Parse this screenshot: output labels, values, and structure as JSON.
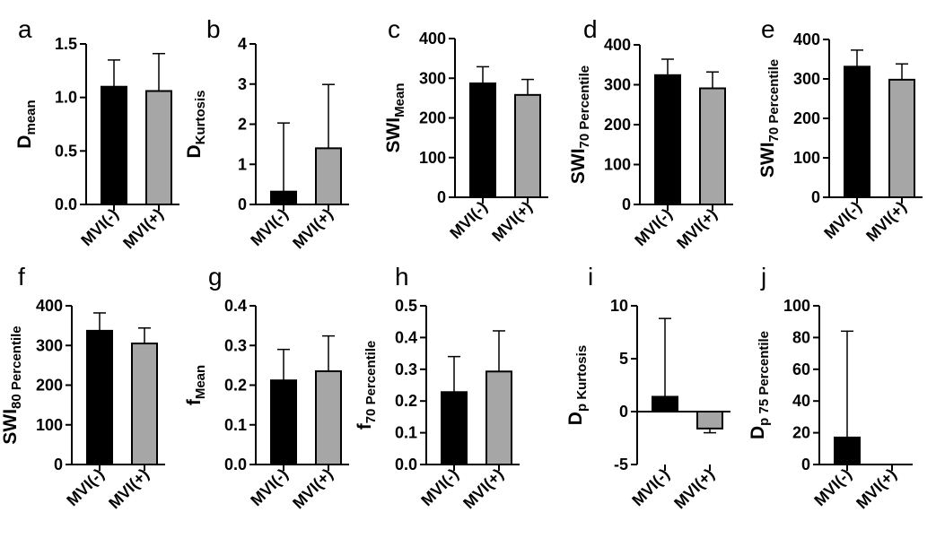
{
  "colors": {
    "mvi_neg": "#000000",
    "mvi_pos": "#a6a6a6",
    "axis": "#000000"
  },
  "chart_data": [
    {
      "panel": "a",
      "type": "bar",
      "ylabel": {
        "main": "D",
        "sub": "mean"
      },
      "ylim": [
        0,
        1.5
      ],
      "yticks": [
        "0.0",
        "0.5",
        "1.0",
        "1.5"
      ],
      "ytick_values": [
        0,
        0.5,
        1.0,
        1.5
      ],
      "categories": [
        "MVI(-)",
        "MVI(+)"
      ],
      "values": [
        1.1,
        1.06
      ],
      "error_upper": [
        1.35,
        1.41
      ]
    },
    {
      "panel": "b",
      "type": "bar",
      "ylabel": {
        "main": "D",
        "sub": "Kurtosis"
      },
      "ylim": [
        0,
        4
      ],
      "yticks": [
        "0",
        "1",
        "2",
        "3",
        "4"
      ],
      "ytick_values": [
        0,
        1,
        2,
        3,
        4
      ],
      "categories": [
        "MVI(-)",
        "MVI(+)"
      ],
      "values": [
        0.32,
        1.4
      ],
      "error_upper": [
        2.03,
        2.99
      ]
    },
    {
      "panel": "c",
      "type": "bar",
      "ylabel": {
        "main": "SWI",
        "sub": "Mean"
      },
      "ylim": [
        0,
        400
      ],
      "yticks": [
        "0",
        "100",
        "200",
        "300",
        "400"
      ],
      "ytick_values": [
        0,
        100,
        200,
        300,
        400
      ],
      "categories": [
        "MVI(-)",
        "MVI(+)"
      ],
      "values": [
        287,
        258
      ],
      "error_upper": [
        329,
        297
      ]
    },
    {
      "panel": "d",
      "type": "bar",
      "ylabel": {
        "main": "SWI",
        "sub": "70 Percentile"
      },
      "ylim": [
        0,
        400
      ],
      "yticks": [
        "0",
        "100",
        "200",
        "300",
        "400"
      ],
      "ytick_values": [
        0,
        100,
        200,
        300,
        400
      ],
      "categories": [
        "MVI(-)",
        "MVI(+)"
      ],
      "values": [
        324,
        291
      ],
      "error_upper": [
        364,
        332
      ]
    },
    {
      "panel": "e",
      "type": "bar",
      "ylabel": {
        "main": "SWI",
        "sub": "70 Percentile"
      },
      "ylim": [
        0,
        400
      ],
      "yticks": [
        "0",
        "100",
        "200",
        "300",
        "400"
      ],
      "ytick_values": [
        0,
        100,
        200,
        300,
        400
      ],
      "categories": [
        "MVI(-)",
        "MVI(+)"
      ],
      "values": [
        331,
        298
      ],
      "error_upper": [
        373,
        338
      ]
    },
    {
      "panel": "f",
      "type": "bar",
      "ylabel": {
        "main": "SWI",
        "sub": "80 Percentile"
      },
      "ylim": [
        0,
        400
      ],
      "yticks": [
        "0",
        "100",
        "200",
        "300",
        "400"
      ],
      "ytick_values": [
        0,
        100,
        200,
        300,
        400
      ],
      "categories": [
        "MVI(-)",
        "MVI(+)"
      ],
      "values": [
        337,
        305
      ],
      "error_upper": [
        382,
        344
      ]
    },
    {
      "panel": "g",
      "type": "bar",
      "ylabel": {
        "main": "f",
        "sub": "Mean"
      },
      "ylim": [
        0,
        0.4
      ],
      "yticks": [
        "0.0",
        "0.1",
        "0.2",
        "0.3",
        "0.4"
      ],
      "ytick_values": [
        0,
        0.1,
        0.2,
        0.3,
        0.4
      ],
      "categories": [
        "MVI(-)",
        "MVI(+)"
      ],
      "values": [
        0.212,
        0.235
      ],
      "error_upper": [
        0.29,
        0.324
      ]
    },
    {
      "panel": "h",
      "type": "bar",
      "ylabel": {
        "main": "f",
        "sub": "70 Percentile"
      },
      "ylim": [
        0,
        0.5
      ],
      "yticks": [
        "0.0",
        "0.1",
        "0.2",
        "0.3",
        "0.4",
        "0.5"
      ],
      "ytick_values": [
        0,
        0.1,
        0.2,
        0.3,
        0.4,
        0.5
      ],
      "categories": [
        "MVI(-)",
        "MVI(+)"
      ],
      "values": [
        0.228,
        0.293
      ],
      "error_upper": [
        0.34,
        0.421
      ]
    },
    {
      "panel": "i",
      "type": "bar",
      "ylabel": {
        "main": "D",
        "sub": "p Kurtosis"
      },
      "ylim": [
        -5,
        10
      ],
      "yticks": [
        "-5",
        "0",
        "5",
        "10"
      ],
      "ytick_values": [
        -5,
        0,
        5,
        10
      ],
      "categories": [
        "MVI(-)",
        "MVI(+)"
      ],
      "values": [
        1.4,
        -1.6
      ],
      "error_upper": [
        8.8,
        -2.0
      ]
    },
    {
      "panel": "j",
      "type": "bar",
      "ylabel": {
        "main": "D",
        "sub": "p 75 Percentile"
      },
      "ylim": [
        0,
        100
      ],
      "yticks": [
        "0",
        "20",
        "40",
        "60",
        "80",
        "100"
      ],
      "ytick_values": [
        0,
        20,
        40,
        60,
        80,
        100
      ],
      "categories": [
        "MVI(-)",
        "MVI(+)"
      ],
      "values": [
        17,
        0
      ],
      "error_upper": [
        84,
        0
      ]
    }
  ]
}
